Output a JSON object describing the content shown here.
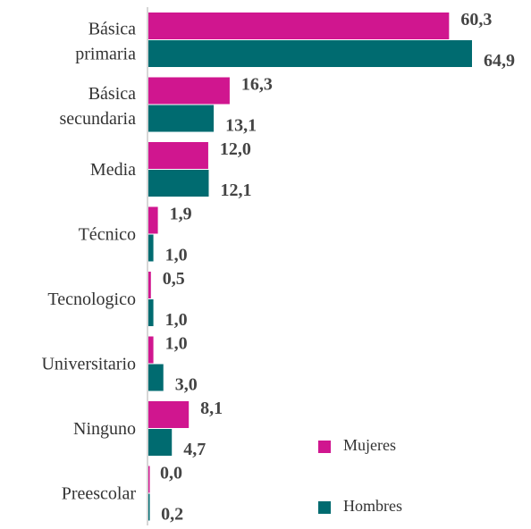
{
  "chart_data": {
    "type": "hbar",
    "categories": [
      "Básica primaria",
      "Básica secundaria",
      "Media",
      "Técnico",
      "Tecnologico",
      "Universitario",
      "Ninguno",
      "Preescolar"
    ],
    "series": [
      {
        "name": "Mujeres",
        "color": "#d0168f",
        "values": [
          60.3,
          16.3,
          12.0,
          1.9,
          0.5,
          1.0,
          8.1,
          0.0
        ],
        "value_labels": [
          "60,3",
          "16,3",
          "12,0",
          "1,9",
          "0,5",
          "1,0",
          "8,1",
          "0,0"
        ]
      },
      {
        "name": "Hombres",
        "color": "#006b70",
        "values": [
          64.9,
          13.1,
          12.1,
          1.0,
          1.0,
          3.0,
          4.7,
          0.2
        ],
        "value_labels": [
          "64,9",
          "13,1",
          "12,1",
          "1,0",
          "1,0",
          "3,0",
          "4,7",
          "0,2"
        ]
      }
    ],
    "xlim": [
      0,
      65
    ]
  }
}
